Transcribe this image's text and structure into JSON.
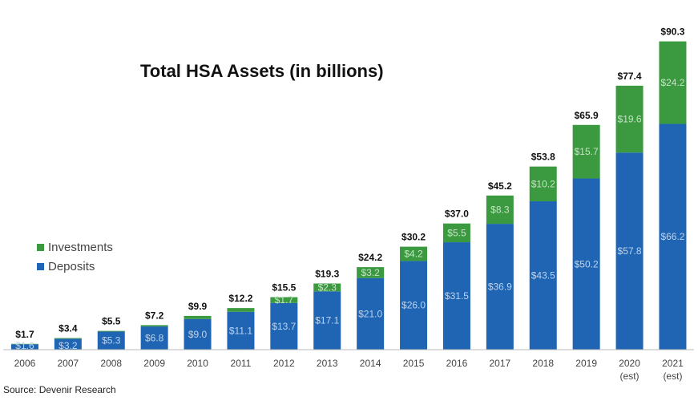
{
  "chart_data": {
    "type": "bar",
    "stacked": true,
    "title": "Total HSA Assets (in billions)",
    "categories": [
      "2006",
      "2007",
      "2008",
      "2009",
      "2010",
      "2011",
      "2012",
      "2013",
      "2014",
      "2015",
      "2016",
      "2017",
      "2018",
      "2019",
      "2020",
      "2021"
    ],
    "category_sublabels": [
      "",
      "",
      "",
      "",
      "",
      "",
      "",
      "",
      "",
      "",
      "",
      "",
      "",
      "",
      "(est)",
      "(est)"
    ],
    "series": [
      {
        "name": "Deposits",
        "color": "#1f65b4",
        "values": [
          1.6,
          3.2,
          5.3,
          6.8,
          9.0,
          11.1,
          13.7,
          17.1,
          21.0,
          26.0,
          31.5,
          36.9,
          43.5,
          50.2,
          57.8,
          66.2
        ],
        "labels": [
          "$1.6",
          "$3.2",
          "$5.3",
          "$6.8",
          "$9.0",
          "$11.1",
          "$13.7",
          "$17.1",
          "$21.0",
          "$26.0",
          "$31.5",
          "$36.9",
          "$43.5",
          "$50.2",
          "$57.8",
          "$66.2"
        ]
      },
      {
        "name": "Investments",
        "color": "#3b9a3f",
        "values": [
          0.1,
          0.2,
          0.2,
          0.4,
          0.9,
          1.1,
          1.7,
          2.3,
          3.2,
          4.2,
          5.5,
          8.3,
          10.2,
          15.7,
          19.6,
          24.2
        ],
        "labels": [
          "",
          "",
          "",
          "",
          "",
          "",
          "$1.7",
          "$2.3",
          "$3.2",
          "$4.2",
          "$5.5",
          "$8.3",
          "$10.2",
          "$15.7",
          "$19.6",
          "$24.2"
        ]
      }
    ],
    "total_labels": [
      "$1.7",
      "$3.4",
      "$5.5",
      "$7.2",
      "$9.9",
      "$12.2",
      "$15.5",
      "$19.3",
      "$24.2",
      "$30.2",
      "$37.0",
      "$45.2",
      "$53.8",
      "$65.9",
      "$77.4",
      "$90.3"
    ],
    "ylim": [
      0,
      95
    ],
    "grid": false,
    "legend_position": "left-middle",
    "legend_order": [
      "Investments",
      "Deposits"
    ],
    "source": "Source: Devenir Research"
  }
}
